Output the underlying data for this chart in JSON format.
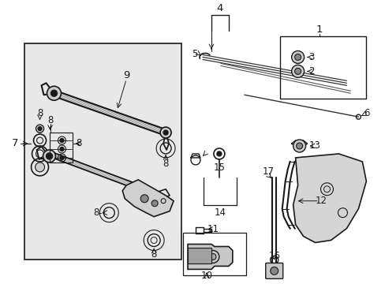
{
  "bg_color": "#ffffff",
  "line_color": "#1a1a1a",
  "box_bg": "#e0e0e0",
  "label_fs": 8.5,
  "title_fs": 7
}
